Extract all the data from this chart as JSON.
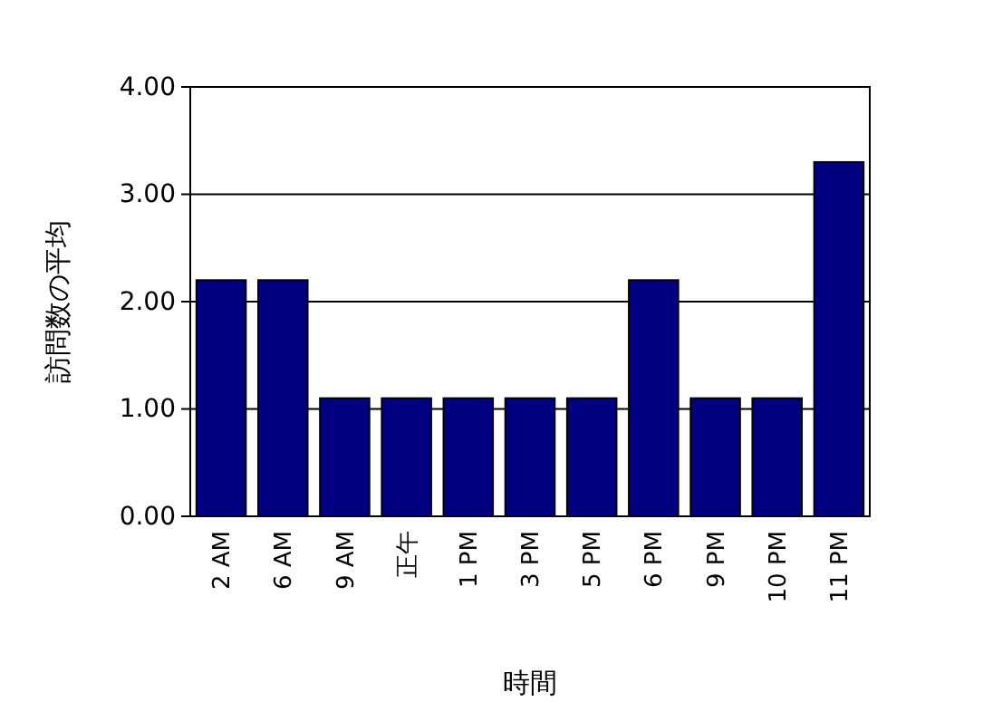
{
  "chart_data": {
    "type": "bar",
    "xlabel": "時間",
    "ylabel": "訪問数の平均",
    "categories": [
      "2 AM",
      "6 AM",
      "9 AM",
      "正午",
      "1 PM",
      "3 PM",
      "5 PM",
      "6 PM",
      "9 PM",
      "10 PM",
      "11 PM"
    ],
    "values": [
      2.2,
      2.2,
      1.1,
      1.1,
      1.1,
      1.1,
      1.1,
      2.2,
      1.1,
      1.1,
      3.3
    ],
    "color": "#000080",
    "ylim": [
      0,
      4
    ],
    "yticks": [
      {
        "value": 0,
        "label": "0.00"
      },
      {
        "value": 1,
        "label": "1.00"
      },
      {
        "value": 2,
        "label": "2.00"
      },
      {
        "value": 3,
        "label": "3.00"
      },
      {
        "value": 4,
        "label": "4.00"
      }
    ],
    "grid": "y"
  }
}
